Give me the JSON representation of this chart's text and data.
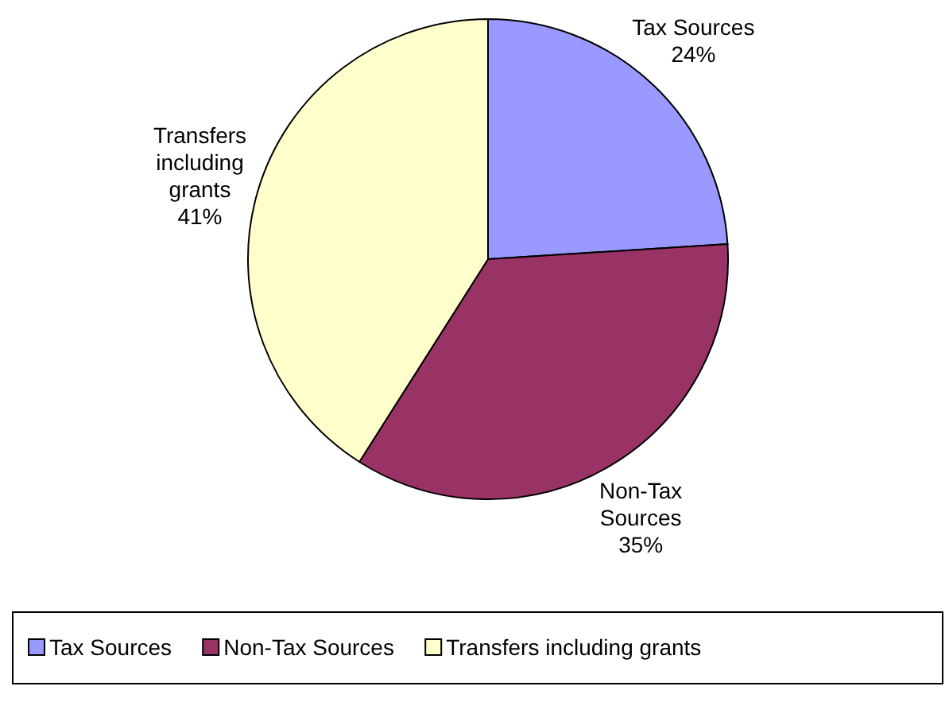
{
  "chart_data": {
    "type": "pie",
    "categories": [
      "Tax Sources",
      "Non-Tax Sources",
      "Transfers including grants"
    ],
    "values": [
      24,
      35,
      41
    ],
    "colors": [
      "#9999ff",
      "#993366",
      "#ffffcc"
    ],
    "value_labels": [
      "24%",
      "35%",
      "41%"
    ],
    "legend": "bottom"
  }
}
